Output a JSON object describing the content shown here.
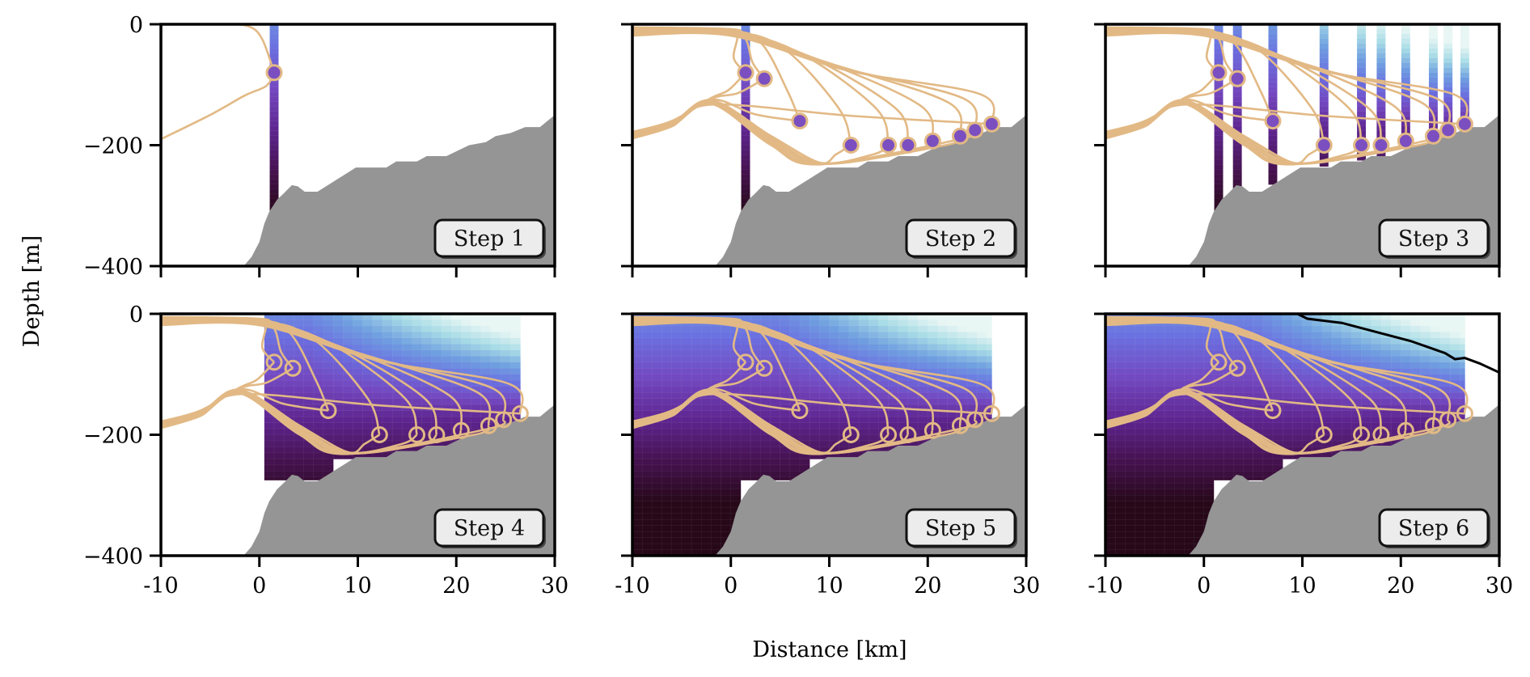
{
  "chart_data": {
    "type": "line",
    "xlabel": "Distance [km]",
    "ylabel": "Depth [m]",
    "xlim": [
      -10,
      30
    ],
    "ylim": [
      -400,
      0
    ],
    "xticks": [
      -10,
      0,
      10,
      20,
      30
    ],
    "xtick_labels": [
      "-10",
      "0",
      "10",
      "20",
      "30"
    ],
    "yticks": [
      0,
      -200,
      -400
    ],
    "ytick_labels": [
      "0",
      "−200",
      "−400"
    ],
    "grid": false,
    "colors": {
      "trajectory": "#e2b985",
      "station_fill": "#7b4fc0",
      "bathymetry": "#959595",
      "contour": "#000000",
      "label_box": "#ececec",
      "colormap": [
        "#e8f6f4",
        "#a8dce6",
        "#6f9fe0",
        "#6a6fe0",
        "#7348c0",
        "#5e2590",
        "#45124f",
        "#260818"
      ]
    },
    "stations": [
      {
        "x": 1.5,
        "depth": -80,
        "profile_bottom": -320
      },
      {
        "x": 3.4,
        "depth": -90,
        "profile_bottom": -275
      },
      {
        "x": 7.0,
        "depth": -160,
        "profile_bottom": -265
      },
      {
        "x": 12.2,
        "depth": -200,
        "profile_bottom": -235
      },
      {
        "x": 16.0,
        "depth": -200,
        "profile_bottom": -225
      },
      {
        "x": 18.0,
        "depth": -200,
        "profile_bottom": -220
      },
      {
        "x": 20.5,
        "depth": -193,
        "profile_bottom": -205
      },
      {
        "x": 23.3,
        "depth": -185,
        "profile_bottom": -195
      },
      {
        "x": 24.8,
        "depth": -175,
        "profile_bottom": -185
      },
      {
        "x": 26.5,
        "depth": -165,
        "profile_bottom": -175
      }
    ],
    "bathymetry": [
      [
        -1.6,
        -400
      ],
      [
        -0.8,
        -385
      ],
      [
        0,
        -360
      ],
      [
        0.5,
        -330
      ],
      [
        1,
        -310
      ],
      [
        1.8,
        -290
      ],
      [
        2.4,
        -281
      ],
      [
        3.3,
        -266
      ],
      [
        3.9,
        -268
      ],
      [
        4.6,
        -277
      ],
      [
        5.9,
        -277
      ],
      [
        9.8,
        -237
      ],
      [
        12.9,
        -237
      ],
      [
        13.9,
        -227
      ],
      [
        16,
        -227
      ],
      [
        17,
        -218
      ],
      [
        19,
        -218
      ],
      [
        21.3,
        -200
      ],
      [
        23,
        -195
      ],
      [
        24,
        -185
      ],
      [
        25.5,
        -180
      ],
      [
        27,
        -170
      ],
      [
        28.5,
        -170
      ],
      [
        30,
        -150
      ]
    ],
    "contour": [
      [
        9.5,
        0
      ],
      [
        10.5,
        -8
      ],
      [
        14,
        -15
      ],
      [
        17.5,
        -30
      ],
      [
        21,
        -45
      ],
      [
        24.5,
        -65
      ],
      [
        25.5,
        -75
      ],
      [
        26.5,
        -73
      ],
      [
        28,
        -82
      ],
      [
        30,
        -97
      ]
    ],
    "panels": [
      {
        "label": "Step 1",
        "stations_shown": 1,
        "profiles_shown": 1,
        "field": "none",
        "contour": false
      },
      {
        "label": "Step 2",
        "stations_shown": 10,
        "profiles_shown": 1,
        "field": "none",
        "contour": false
      },
      {
        "label": "Step 3",
        "stations_shown": 10,
        "profiles_shown": 10,
        "field": "none",
        "contour": false
      },
      {
        "label": "Step 4",
        "stations_shown": 10,
        "profiles_shown": 0,
        "field": "section",
        "contour": false
      },
      {
        "label": "Step 5",
        "stations_shown": 10,
        "profiles_shown": 0,
        "field": "extended",
        "contour": false
      },
      {
        "label": "Step 6",
        "stations_shown": 10,
        "profiles_shown": 0,
        "field": "extended",
        "contour": true
      }
    ]
  }
}
